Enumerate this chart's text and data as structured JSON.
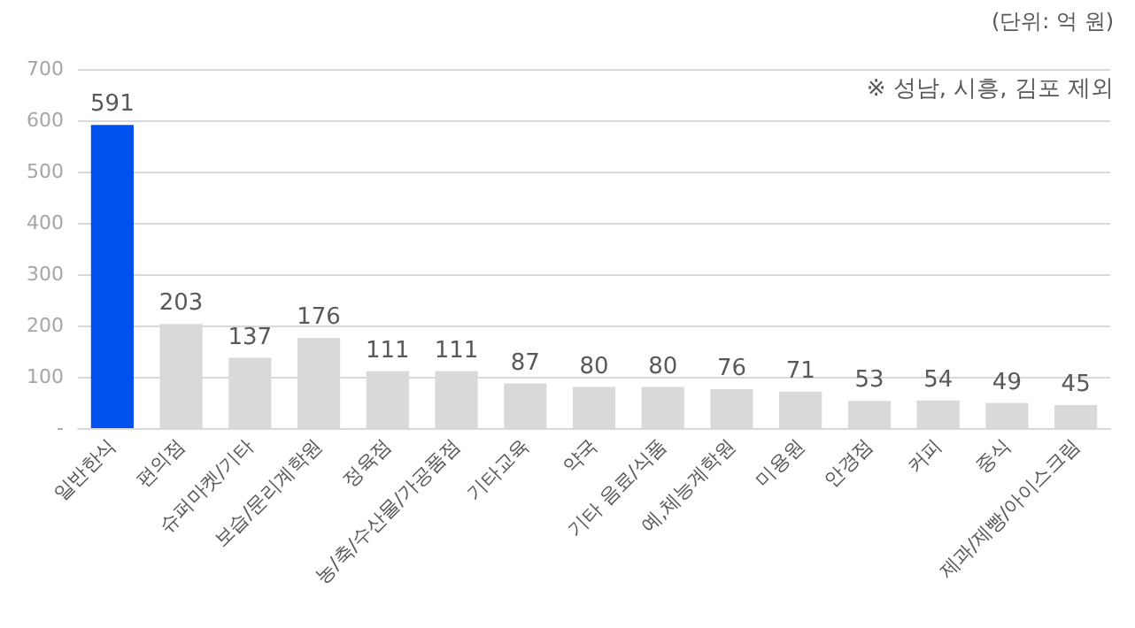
{
  "chart_data": {
    "type": "bar",
    "categories": [
      "일반한식",
      "편의점",
      "슈퍼마켓/기타",
      "보습/문리계학원",
      "정육점",
      "농/축/수산물/가공품점",
      "기타교육",
      "약국",
      "기타 음료/식품",
      "예,체능계학원",
      "미용원",
      "안경점",
      "커피",
      "중식",
      "제과/제빵/아이스크림"
    ],
    "values": [
      591,
      203,
      137,
      176,
      111,
      111,
      87,
      80,
      80,
      76,
      71,
      53,
      54,
      49,
      45
    ],
    "colors": [
      "#0050ef",
      "#d9d9d9",
      "#d9d9d9",
      "#d9d9d9",
      "#d9d9d9",
      "#d9d9d9",
      "#d9d9d9",
      "#d9d9d9",
      "#d9d9d9",
      "#d9d9d9",
      "#d9d9d9",
      "#d9d9d9",
      "#d9d9d9",
      "#d9d9d9",
      "#d9d9d9"
    ],
    "ylim": [
      0,
      700
    ],
    "yticks": [
      {
        "value": 0,
        "label": "-"
      },
      100,
      200,
      300,
      400,
      500,
      600,
      700
    ],
    "grid": "y",
    "data_labels": true,
    "annotations": [
      "(단위: 억 원)",
      "※ 성남, 시흥, 김포 제외"
    ]
  }
}
